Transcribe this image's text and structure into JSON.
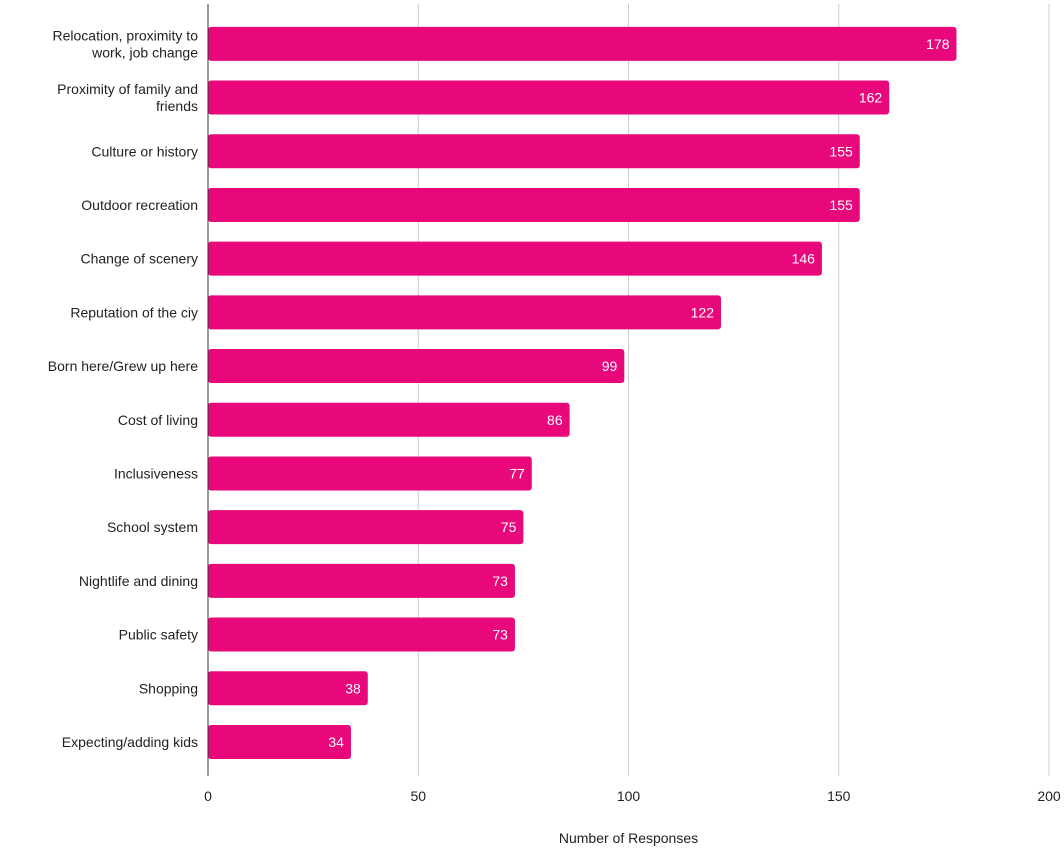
{
  "chart_data": {
    "type": "bar",
    "orientation": "horizontal",
    "title": "",
    "xlabel": "Number of Responses",
    "ylabel": "",
    "categories": [
      [
        "Relocation, proximity to",
        "work, job change"
      ],
      [
        "Proximity of family and",
        "friends"
      ],
      [
        "Culture or history"
      ],
      [
        "Outdoor recreation"
      ],
      [
        "Change of scenery"
      ],
      [
        "Reputation of the ciy"
      ],
      [
        "Born here/Grew up here"
      ],
      [
        "Cost of living"
      ],
      [
        "Inclusiveness"
      ],
      [
        "School system"
      ],
      [
        "Nightlife and dining"
      ],
      [
        "Public safety"
      ],
      [
        "Shopping"
      ],
      [
        "Expecting/adding kids"
      ]
    ],
    "values": [
      178,
      162,
      155,
      155,
      146,
      122,
      99,
      86,
      77,
      75,
      73,
      73,
      38,
      34
    ],
    "data_labels": [
      "178",
      "162",
      "155",
      "155",
      "146",
      "122",
      "99",
      "86",
      "77",
      "75",
      "73",
      "73",
      "38",
      "34"
    ],
    "xlim": [
      0,
      200
    ],
    "xticks": [
      0,
      50,
      100,
      150,
      200
    ],
    "xtick_labels": [
      "0",
      "50",
      "100",
      "150",
      "200"
    ],
    "grid": true,
    "legend": "none",
    "colors": {
      "bar": "#e8087c",
      "grid": "#cccccc",
      "axis": "#333333",
      "value_text": "#ffffff"
    }
  }
}
